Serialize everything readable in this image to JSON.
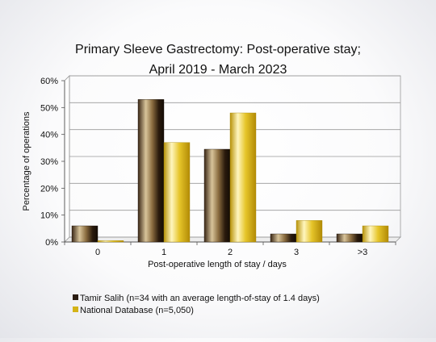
{
  "chart_data": {
    "type": "bar",
    "title_line1": "Primary Sleeve Gastrectomy: Post-operative stay;",
    "title_line2": "April 2019 - March 2023",
    "xlabel": "Post-operative length of stay / days",
    "ylabel": "Percentage of operations",
    "categories": [
      "0",
      "1",
      "2",
      "3",
      ">3"
    ],
    "ylim": [
      0,
      60
    ],
    "yticks": [
      0,
      10,
      20,
      30,
      40,
      50,
      60
    ],
    "ytick_suffix": "%",
    "grid": true,
    "legend_position": "bottom-left",
    "series": [
      {
        "name": "Tamir Salih (n=34 with an average length-of-stay of 1.4 days)",
        "values": [
          6.0,
          53.0,
          34.5,
          3.0,
          3.0
        ],
        "color": "#2a1d12"
      },
      {
        "name": "National Database (n=5,050)",
        "values": [
          0.5,
          37.0,
          48.0,
          8.0,
          6.0
        ],
        "color": "#d4b317"
      }
    ]
  }
}
